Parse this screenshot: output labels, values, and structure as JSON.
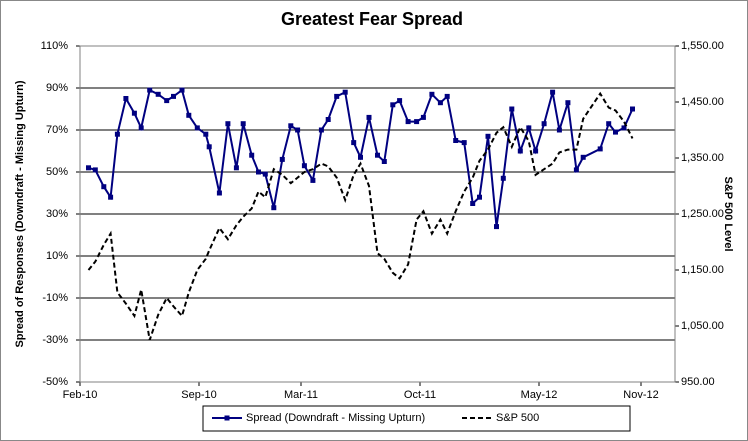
{
  "chart_data": {
    "type": "line",
    "title": "Greatest Fear Spread",
    "y_label": "Spread of Responses (Downdraft - Missing Upturn)",
    "y2_label": "S&P 500 Level",
    "x": [
      0.5,
      0.9,
      1.4,
      1.8,
      2.2,
      2.7,
      3.2,
      3.6,
      4.1,
      4.6,
      5.1,
      5.5,
      6.0,
      6.4,
      6.9,
      7.4,
      7.6,
      8.2,
      8.7,
      9.2,
      9.6,
      10.1,
      10.5,
      10.9,
      11.4,
      11.9,
      12.4,
      12.8,
      13.2,
      13.7,
      14.2,
      14.6,
      15.1,
      15.6,
      16.1,
      16.5,
      17.0,
      17.5,
      17.9,
      18.4,
      18.8,
      19.3,
      19.8,
      20.2,
      20.7,
      21.2,
      21.6,
      22.1,
      22.6,
      23.1,
      23.5,
      24.0,
      24.5,
      24.9,
      25.4,
      25.9,
      26.4,
      26.8,
      27.3,
      27.8,
      28.2,
      28.7,
      29.2,
      29.6,
      30.6,
      31.1,
      31.5,
      32.0,
      32.5
    ],
    "series": [
      {
        "name": "Spread (Downdraft - Missing Upturn)",
        "color": "#000080",
        "values": [
          52,
          51,
          43,
          38,
          68,
          85,
          78,
          71,
          89,
          87,
          84,
          86,
          89,
          77,
          71,
          68,
          62,
          40,
          73,
          52,
          73,
          58,
          50,
          49,
          33,
          56,
          72,
          70,
          53,
          46,
          70,
          75,
          86,
          88,
          64,
          57,
          76,
          58,
          55,
          82,
          84,
          74,
          74,
          76,
          87,
          83,
          86,
          65,
          64,
          35,
          38,
          67,
          24,
          47,
          80,
          60,
          71,
          60,
          73,
          88,
          70,
          83,
          51,
          57,
          61,
          73,
          69,
          71,
          80
        ]
      },
      {
        "name": "S&P 500",
        "color": "#000000",
        "axis": "y2",
        "values": [
          1150,
          1165,
          1195,
          1215,
          1110,
          1090,
          1068,
          1115,
          1025,
          1070,
          1100,
          1085,
          1068,
          1110,
          1150,
          1170,
          1185,
          1225,
          1205,
          1230,
          1245,
          1260,
          1290,
          1280,
          1330,
          1320,
          1305,
          1315,
          1325,
          1330,
          1340,
          1335,
          1315,
          1275,
          1320,
          1340,
          1300,
          1180,
          1170,
          1145,
          1135,
          1160,
          1240,
          1255,
          1215,
          1240,
          1215,
          1255,
          1290,
          1315,
          1345,
          1365,
          1395,
          1405,
          1370,
          1405,
          1380,
          1320,
          1330,
          1340,
          1360,
          1365,
          1365,
          1420,
          1465,
          1440,
          1435,
          1415,
          1385
        ]
      }
    ],
    "xlim": [
      0,
      35
    ],
    "xticks": [
      {
        "value": 0,
        "label": "Feb-10"
      },
      {
        "value": 7,
        "label": "Sep-10"
      },
      {
        "value": 13,
        "label": "Mar-11"
      },
      {
        "value": 20,
        "label": "Oct-11"
      },
      {
        "value": 27,
        "label": "May-12"
      },
      {
        "value": 33,
        "label": "Nov-12"
      }
    ],
    "ylim": [
      -50,
      110
    ],
    "yticks": [
      {
        "value": -50,
        "label": "-50%"
      },
      {
        "value": -30,
        "label": "-30%"
      },
      {
        "value": -10,
        "label": "-10%"
      },
      {
        "value": 10,
        "label": "10%"
      },
      {
        "value": 30,
        "label": "30%"
      },
      {
        "value": 50,
        "label": "50%"
      },
      {
        "value": 70,
        "label": "70%"
      },
      {
        "value": 90,
        "label": "90%"
      },
      {
        "value": 110,
        "label": "110%"
      }
    ],
    "y2lim": [
      950,
      1550
    ],
    "y2ticks": [
      {
        "value": 950,
        "label": "950.00"
      },
      {
        "value": 1050,
        "label": "1,050.00"
      },
      {
        "value": 1150,
        "label": "1,150.00"
      },
      {
        "value": 1250,
        "label": "1,250.00"
      },
      {
        "value": 1350,
        "label": "1,350.00"
      },
      {
        "value": 1450,
        "label": "1,450.00"
      },
      {
        "value": 1550,
        "label": "1,550.00"
      }
    ],
    "grid": true
  }
}
